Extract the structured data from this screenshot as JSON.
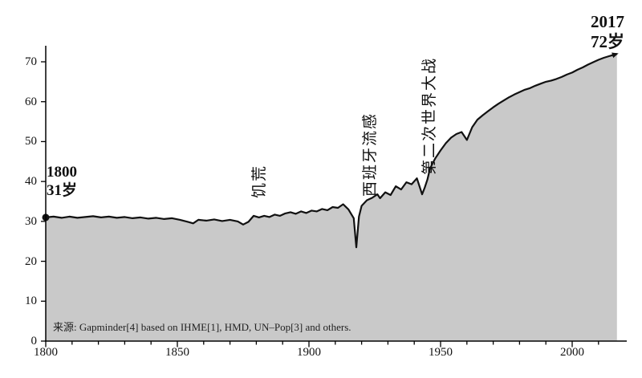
{
  "annotations": {
    "start_year": "1800",
    "start_value": "31岁",
    "end_year": "2017",
    "end_value": "72岁",
    "famine": "饥荒",
    "spanish_flu": "西班牙流感",
    "wwii": "第二次世界大战",
    "source": "来源: Gapminder[4] based on IHME[1], HMD, UN–Pop[3] and others."
  },
  "axes": {
    "x_ticks": [
      1800,
      1850,
      1900,
      1950,
      2000
    ],
    "x_minor_step": 10,
    "y_ticks": [
      0,
      10,
      20,
      30,
      40,
      50,
      60,
      70
    ]
  },
  "colors": {
    "area": "#c9c9c9",
    "line": "#111111",
    "axis": "#000000"
  },
  "chart_data": {
    "type": "area",
    "title": "",
    "xlabel": "",
    "ylabel": "",
    "xlim": [
      1800,
      2020
    ],
    "ylim": [
      0,
      72
    ],
    "legend": false,
    "grid": false,
    "events": [
      {
        "label": "饥荒",
        "year": 1875,
        "value": 29.2
      },
      {
        "label": "西班牙流感",
        "year": 1918,
        "value": 23.5
      },
      {
        "label": "第二次世界大战",
        "year": 1943,
        "value": 36.8
      },
      {
        "label": "起点 1800",
        "year": 1800,
        "value": 31
      },
      {
        "label": "终点 2017",
        "year": 2017,
        "value": 72
      }
    ],
    "points": [
      [
        1800,
        31.0
      ],
      [
        1803,
        31.2
      ],
      [
        1806,
        30.9
      ],
      [
        1809,
        31.2
      ],
      [
        1812,
        30.9
      ],
      [
        1815,
        31.1
      ],
      [
        1818,
        31.3
      ],
      [
        1821,
        31.0
      ],
      [
        1824,
        31.2
      ],
      [
        1827,
        30.9
      ],
      [
        1830,
        31.1
      ],
      [
        1833,
        30.8
      ],
      [
        1836,
        31.0
      ],
      [
        1839,
        30.7
      ],
      [
        1842,
        30.9
      ],
      [
        1845,
        30.6
      ],
      [
        1848,
        30.8
      ],
      [
        1851,
        30.4
      ],
      [
        1854,
        29.9
      ],
      [
        1856,
        29.5
      ],
      [
        1858,
        30.4
      ],
      [
        1861,
        30.2
      ],
      [
        1864,
        30.5
      ],
      [
        1867,
        30.1
      ],
      [
        1870,
        30.4
      ],
      [
        1873,
        30.0
      ],
      [
        1875,
        29.2
      ],
      [
        1877,
        29.9
      ],
      [
        1879,
        31.4
      ],
      [
        1881,
        31.0
      ],
      [
        1883,
        31.4
      ],
      [
        1885,
        31.1
      ],
      [
        1887,
        31.7
      ],
      [
        1889,
        31.4
      ],
      [
        1891,
        32.0
      ],
      [
        1893,
        32.3
      ],
      [
        1895,
        31.9
      ],
      [
        1897,
        32.5
      ],
      [
        1899,
        32.1
      ],
      [
        1901,
        32.7
      ],
      [
        1903,
        32.5
      ],
      [
        1905,
        33.1
      ],
      [
        1907,
        32.8
      ],
      [
        1909,
        33.6
      ],
      [
        1911,
        33.4
      ],
      [
        1913,
        34.3
      ],
      [
        1915,
        33.0
      ],
      [
        1917,
        30.8
      ],
      [
        1918,
        23.5
      ],
      [
        1919,
        31.2
      ],
      [
        1920,
        33.9
      ],
      [
        1922,
        35.3
      ],
      [
        1924,
        35.9
      ],
      [
        1926,
        36.8
      ],
      [
        1927,
        35.8
      ],
      [
        1929,
        37.3
      ],
      [
        1931,
        36.6
      ],
      [
        1933,
        38.8
      ],
      [
        1935,
        38.0
      ],
      [
        1937,
        39.8
      ],
      [
        1939,
        39.3
      ],
      [
        1941,
        40.8
      ],
      [
        1943,
        36.8
      ],
      [
        1944,
        38.5
      ],
      [
        1945,
        40.5
      ],
      [
        1946,
        43.3
      ],
      [
        1948,
        45.8
      ],
      [
        1950,
        47.8
      ],
      [
        1952,
        49.6
      ],
      [
        1954,
        51.0
      ],
      [
        1956,
        51.9
      ],
      [
        1958,
        52.4
      ],
      [
        1960,
        50.4
      ],
      [
        1962,
        53.6
      ],
      [
        1964,
        55.5
      ],
      [
        1966,
        56.6
      ],
      [
        1968,
        57.6
      ],
      [
        1970,
        58.6
      ],
      [
        1972,
        59.5
      ],
      [
        1974,
        60.3
      ],
      [
        1976,
        61.1
      ],
      [
        1978,
        61.8
      ],
      [
        1980,
        62.4
      ],
      [
        1982,
        63.0
      ],
      [
        1984,
        63.4
      ],
      [
        1986,
        64.0
      ],
      [
        1988,
        64.5
      ],
      [
        1990,
        65.0
      ],
      [
        1992,
        65.3
      ],
      [
        1994,
        65.7
      ],
      [
        1996,
        66.2
      ],
      [
        1998,
        66.8
      ],
      [
        2000,
        67.3
      ],
      [
        2002,
        68.0
      ],
      [
        2004,
        68.6
      ],
      [
        2006,
        69.3
      ],
      [
        2008,
        69.9
      ],
      [
        2010,
        70.5
      ],
      [
        2012,
        71.0
      ],
      [
        2014,
        71.4
      ],
      [
        2016,
        71.8
      ],
      [
        2017,
        72.0
      ]
    ]
  }
}
